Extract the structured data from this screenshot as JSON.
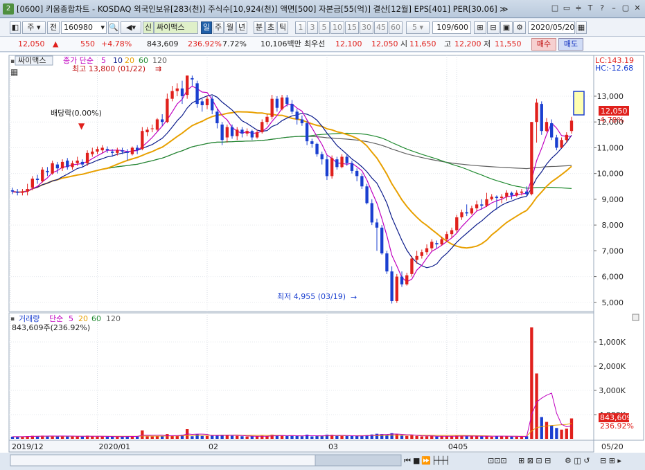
{
  "window": {
    "badge": "2",
    "title": "[0600] 키움종합차트 - KOSDAQ 외국인보유[283(천)] 주식수[10,924(천)] 액면[500] 자본금[55(억)] 결산[12월] EPS[401] PER[30.06] ≫"
  },
  "toolbar": {
    "mode": "주",
    "prev_label": "전",
    "code": "160980",
    "badge_new": "신",
    "stock_name": "싸이맥스",
    "periods": [
      "일",
      "주",
      "월",
      "년",
      "분",
      "초",
      "틱"
    ],
    "active_period": "일",
    "intervals": [
      "1",
      "3",
      "5",
      "10",
      "15",
      "30",
      "45",
      "60"
    ],
    "custom_interval": "5",
    "page_count": "109/600",
    "date": "2020/05/20"
  },
  "quote": {
    "price": "12,050",
    "change": "550",
    "change_pct": "+4.78%",
    "volume": "843,609",
    "volume_ratio": "236.92%",
    "turnover": "7.72%",
    "amount": "10,106백만",
    "best_bid_label": "최우선",
    "bid": "12,100",
    "ask": "12,050",
    "open_label": "시",
    "open": "11,650",
    "high_label": "고",
    "high": "12,200",
    "low_label": "저",
    "low": "11,550",
    "buy_label": "매수",
    "sell_label": "매도"
  },
  "price_pane": {
    "stock_tag": "싸이맥스",
    "ma_label": "종가 단순",
    "ma_periods": [
      "5",
      "10",
      "20",
      "60",
      "120"
    ],
    "high_note": "최고 13,800 (01/22)",
    "low_note": "최저 4,955 (03/19)",
    "dividend_note": "배당락(0.00%)",
    "lc_label": "LC:143.19",
    "hc_label": "HC:-12.68",
    "current_price_tag": "12,050",
    "current_pct_tag": "4.78%",
    "y_ticks": [
      "13,000",
      "12,000",
      "11,000",
      "10,000",
      "9,000",
      "8,000",
      "7,000",
      "6,000",
      "5,000"
    ]
  },
  "volume_pane": {
    "title": "거래량",
    "ma_label": "단순",
    "ma_periods": [
      "5",
      "20",
      "60",
      "120"
    ],
    "current": "843,609주(236.92%)",
    "y_ticks": [
      "4,000K",
      "3,000K",
      "2,000K",
      "1,000K"
    ],
    "current_tag": "843,609",
    "current_pct_tag": "236.92%"
  },
  "x_axis": {
    "labels": [
      "2019/12",
      "2020/01",
      "02",
      "03",
      "04",
      "05"
    ],
    "right_label": "05/20"
  },
  "colors": {
    "up": "#e0201c",
    "down": "#1a3fd0",
    "ma5": "#c000c0",
    "ma10": "#0a1a8a",
    "ma20": "#e8a000",
    "ma60": "#208a30",
    "ma120": "#606060"
  },
  "chart_data": {
    "type": "candlestick",
    "y_range": [
      4700,
      14100
    ],
    "candles": [
      [
        9350,
        9300,
        9450,
        9200
      ],
      [
        9300,
        9250,
        9400,
        9150
      ],
      [
        9250,
        9300,
        9400,
        9150
      ],
      [
        9300,
        9400,
        9600,
        9150
      ],
      [
        9450,
        9800,
        9900,
        9350
      ],
      [
        9800,
        9750,
        9950,
        9600
      ],
      [
        9700,
        10150,
        10250,
        9650
      ],
      [
        10100,
        10050,
        10250,
        9900
      ],
      [
        10000,
        10400,
        10500,
        9950
      ],
      [
        10350,
        10200,
        10450,
        10000
      ],
      [
        10200,
        10450,
        10550,
        10100
      ],
      [
        10500,
        10250,
        10600,
        10150
      ],
      [
        10250,
        10400,
        10500,
        10150
      ],
      [
        10400,
        10500,
        10650,
        10300
      ],
      [
        10450,
        10350,
        10550,
        10250
      ],
      [
        10400,
        10800,
        10900,
        10300
      ],
      [
        10750,
        10850,
        11000,
        10650
      ],
      [
        10850,
        10950,
        11050,
        10750
      ],
      [
        10900,
        11000,
        11100,
        10800
      ],
      [
        10950,
        10900,
        11050,
        10800
      ],
      [
        10850,
        10800,
        10950,
        10650
      ],
      [
        10800,
        10900,
        11000,
        10700
      ],
      [
        10900,
        10850,
        11000,
        10750
      ],
      [
        10850,
        10800,
        10950,
        10500
      ],
      [
        10750,
        11000,
        11050,
        10700
      ],
      [
        11000,
        10900,
        11100,
        10750
      ],
      [
        10950,
        11650,
        11800,
        10900
      ],
      [
        11600,
        11700,
        11800,
        11450
      ],
      [
        11750,
        11750,
        11900,
        11600
      ],
      [
        11700,
        12100,
        12150,
        11650
      ],
      [
        12100,
        12000,
        12300,
        11850
      ],
      [
        12000,
        12900,
        13100,
        11950
      ],
      [
        12900,
        13200,
        13400,
        12800
      ],
      [
        13200,
        13300,
        13500,
        13000
      ],
      [
        13300,
        13000,
        13600,
        12700
      ],
      [
        13050,
        13800,
        13800,
        12900
      ],
      [
        13700,
        13650,
        13800,
        13400
      ],
      [
        13500,
        12700,
        13600,
        12550
      ],
      [
        12800,
        12650,
        12900,
        12400
      ],
      [
        12650,
        12900,
        13000,
        12500
      ],
      [
        12900,
        12450,
        13000,
        12300
      ],
      [
        12400,
        11950,
        12500,
        11750
      ],
      [
        11900,
        11300,
        12000,
        11100
      ],
      [
        11400,
        11800,
        11900,
        11200
      ],
      [
        11800,
        11450,
        11900,
        11350
      ],
      [
        11450,
        11700,
        11800,
        11300
      ],
      [
        11700,
        11550,
        11800,
        11400
      ],
      [
        11550,
        11650,
        11750,
        11450
      ],
      [
        11650,
        11400,
        11700,
        11300
      ],
      [
        11400,
        11600,
        11700,
        11350
      ],
      [
        11600,
        12000,
        12100,
        11550
      ],
      [
        12000,
        12200,
        12300,
        11900
      ],
      [
        12200,
        12900,
        13050,
        12100
      ],
      [
        12900,
        12550,
        13000,
        12400
      ],
      [
        12500,
        12950,
        13050,
        12450
      ],
      [
        12950,
        12700,
        13050,
        12600
      ],
      [
        12700,
        12400,
        12850,
        12300
      ],
      [
        12400,
        12100,
        12500,
        11900
      ],
      [
        12100,
        11950,
        12250,
        11850
      ],
      [
        11950,
        11250,
        12050,
        11100
      ],
      [
        11250,
        11150,
        11350,
        11000
      ],
      [
        11150,
        10750,
        11200,
        10650
      ],
      [
        10750,
        10550,
        10850,
        10350
      ],
      [
        10550,
        9900,
        10700,
        9750
      ],
      [
        9900,
        10600,
        10700,
        9800
      ],
      [
        10550,
        10250,
        10650,
        10150
      ],
      [
        10250,
        10650,
        10750,
        10200
      ],
      [
        10650,
        10400,
        10750,
        10300
      ],
      [
        10400,
        10100,
        10500,
        10000
      ],
      [
        10100,
        9900,
        10200,
        9700
      ],
      [
        9900,
        9500,
        10000,
        9400
      ],
      [
        9500,
        8850,
        9600,
        8800
      ],
      [
        8850,
        8100,
        9000,
        8000
      ],
      [
        8100,
        7900,
        8250,
        7000
      ],
      [
        7900,
        6900,
        8000,
        6850
      ],
      [
        6900,
        6200,
        7000,
        6100
      ],
      [
        6200,
        5050,
        6400,
        4955
      ],
      [
        5050,
        6000,
        6100,
        4980
      ],
      [
        6000,
        5700,
        6200,
        5600
      ],
      [
        5700,
        6050,
        6150,
        5650
      ],
      [
        6100,
        6700,
        6800,
        6000
      ],
      [
        6650,
        6800,
        7000,
        6500
      ],
      [
        6800,
        6950,
        7050,
        6700
      ],
      [
        6950,
        7100,
        7250,
        6850
      ],
      [
        7100,
        7350,
        7450,
        7000
      ],
      [
        7300,
        7250,
        7400,
        7100
      ],
      [
        7250,
        7450,
        7550,
        7200
      ],
      [
        7450,
        7650,
        7750,
        7350
      ],
      [
        7650,
        7800,
        7900,
        7500
      ],
      [
        7800,
        8300,
        8400,
        7700
      ],
      [
        8300,
        8500,
        8600,
        8200
      ],
      [
        8500,
        8450,
        8800,
        8350
      ],
      [
        8450,
        8650,
        8750,
        8400
      ],
      [
        8650,
        8800,
        8950,
        8550
      ],
      [
        8800,
        8750,
        9000,
        8600
      ],
      [
        8750,
        9000,
        9250,
        8700
      ],
      [
        9000,
        9100,
        9200,
        8950
      ],
      [
        9100,
        9050,
        9150,
        8600
      ],
      [
        9050,
        9100,
        9200,
        8850
      ],
      [
        9100,
        9250,
        9350,
        8950
      ],
      [
        9250,
        9150,
        9300,
        9000
      ],
      [
        9150,
        9250,
        9350,
        9100
      ],
      [
        9250,
        9300,
        9400,
        9150
      ],
      [
        9300,
        9200,
        9500,
        9100
      ],
      [
        9200,
        12000,
        12000,
        9150
      ],
      [
        12000,
        12750,
        12900,
        11200
      ],
      [
        12700,
        11650,
        12800,
        11500
      ],
      [
        11650,
        12000,
        12150,
        11600
      ],
      [
        11950,
        11400,
        12100,
        11300
      ],
      [
        11400,
        11000,
        11500,
        10900
      ],
      [
        11000,
        11300,
        11400,
        11000
      ],
      [
        11300,
        11500,
        11600,
        11200
      ],
      [
        11650,
        12050,
        12200,
        11550
      ]
    ],
    "volume_ticks": [
      1000000,
      2000000,
      3000000,
      4000000
    ],
    "volume_range": [
      0,
      4800000
    ]
  }
}
